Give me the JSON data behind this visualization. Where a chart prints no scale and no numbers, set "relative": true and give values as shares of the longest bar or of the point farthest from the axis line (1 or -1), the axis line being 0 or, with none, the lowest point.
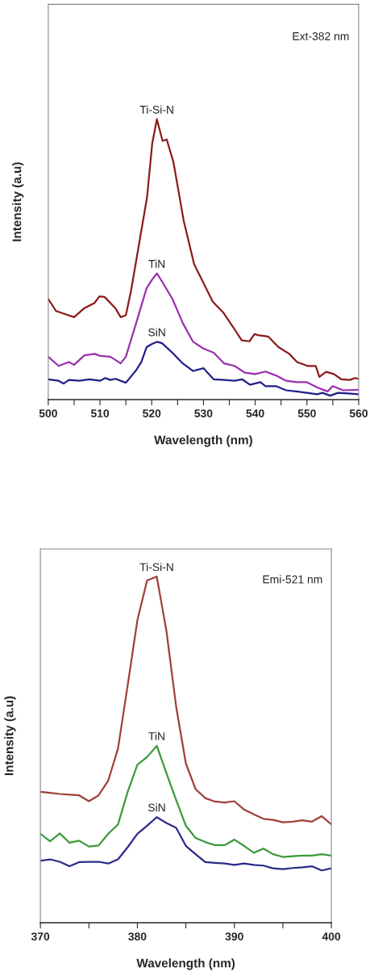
{
  "chart_data": [
    {
      "type": "line",
      "relative": true,
      "xlabel": "Wavelength (nm)",
      "ylabel": "Intensity (a.u)",
      "annotations": [
        "Ext-382 nm"
      ],
      "xlim": [
        500,
        560
      ],
      "xticks": [
        500,
        {
          "value": 505,
          "label": null
        },
        510,
        {
          "value": 515,
          "label": null
        },
        520,
        {
          "value": 525,
          "label": null
        },
        530,
        {
          "value": 535,
          "label": null
        },
        540,
        {
          "value": 545,
          "label": null
        },
        550,
        {
          "value": 555,
          "label": null
        },
        560
      ],
      "grid": false,
      "legend": false,
      "marker": "none",
      "line_style": "solid",
      "series": [
        {
          "name": "Ti-Si-N",
          "color": "#8b1a1a",
          "x": [
            500,
            501.5,
            503.1,
            505,
            506.9,
            508.9,
            509.9,
            510.9,
            513,
            514,
            515,
            516,
            517.6,
            519.1,
            520.1,
            521,
            522.1,
            522.9,
            524.2,
            526.2,
            528.2,
            530,
            531.8,
            533.8,
            535.9,
            537.4,
            538.9,
            539.9,
            540.5,
            542.5,
            544.5,
            546.6,
            548.1,
            550.1,
            551.7,
            552.4,
            553.7,
            555.2,
            556.7,
            558.3,
            559.3,
            560
          ],
          "values": [
            0.359,
            0.316,
            0.306,
            0.294,
            0.325,
            0.344,
            0.368,
            0.366,
            0.325,
            0.294,
            0.301,
            0.388,
            0.56,
            0.722,
            0.914,
            1.0,
            0.923,
            0.928,
            0.847,
            0.636,
            0.483,
            0.416,
            0.349,
            0.311,
            0.254,
            0.211,
            0.208,
            0.234,
            0.23,
            0.225,
            0.187,
            0.163,
            0.134,
            0.12,
            0.12,
            0.081,
            0.099,
            0.091,
            0.072,
            0.07,
            0.077,
            0.074
          ]
        },
        {
          "name": "TiN",
          "color": "#9b2fae",
          "x": [
            500,
            502,
            504,
            505,
            507,
            509,
            510,
            512,
            514,
            515,
            517,
            519,
            520,
            521,
            522,
            524,
            526,
            528,
            530,
            532,
            534,
            536,
            538,
            540,
            542,
            544,
            546,
            548,
            550,
            552,
            554,
            555,
            557,
            560
          ],
          "values": [
            0.153,
            0.12,
            0.134,
            0.124,
            0.158,
            0.163,
            0.156,
            0.153,
            0.129,
            0.153,
            0.273,
            0.397,
            0.426,
            0.45,
            0.421,
            0.359,
            0.273,
            0.206,
            0.182,
            0.167,
            0.129,
            0.12,
            0.096,
            0.091,
            0.1,
            0.086,
            0.067,
            0.062,
            0.062,
            0.043,
            0.029,
            0.048,
            0.033,
            0.035
          ]
        },
        {
          "name": "SiN",
          "color": "#1f1f8a",
          "x": [
            500,
            502,
            503,
            504,
            506,
            508,
            510,
            511,
            512,
            513,
            515,
            517,
            518,
            519,
            520,
            521,
            522,
            524,
            526,
            528,
            530,
            532,
            534,
            536,
            537.5,
            539,
            541,
            542,
            544,
            546,
            548,
            550,
            552,
            553,
            554.5,
            556,
            558,
            560
          ],
          "values": [
            0.072,
            0.067,
            0.057,
            0.07,
            0.067,
            0.072,
            0.067,
            0.077,
            0.07,
            0.074,
            0.06,
            0.105,
            0.134,
            0.187,
            0.198,
            0.206,
            0.201,
            0.167,
            0.129,
            0.102,
            0.112,
            0.072,
            0.07,
            0.067,
            0.072,
            0.053,
            0.062,
            0.048,
            0.048,
            0.033,
            0.029,
            0.024,
            0.019,
            0.024,
            0.014,
            0.024,
            0.022,
            0.019
          ]
        }
      ]
    },
    {
      "type": "line",
      "relative": true,
      "xlabel": "Wavelength (nm)",
      "ylabel": "Intensity (a.u)",
      "annotations": [
        "Emi-521 nm"
      ],
      "xlim": [
        370,
        400
      ],
      "xticks": [
        370,
        {
          "value": 375,
          "label": null
        },
        380,
        {
          "value": 385,
          "label": null
        },
        390,
        {
          "value": 395,
          "label": null
        },
        400
      ],
      "grid": false,
      "legend": false,
      "marker": "none",
      "line_style": "solid",
      "x": [
        370,
        371,
        372,
        373,
        374,
        375,
        376,
        377,
        378,
        379,
        380,
        381,
        382,
        383,
        384,
        385,
        386,
        387,
        388,
        389,
        390,
        391,
        392,
        393,
        394,
        395,
        396,
        397,
        398,
        399,
        400
      ],
      "series": [
        {
          "name": "Ti-Si-N",
          "color": "#a0403a",
          "values": [
            0.378,
            0.375,
            0.372,
            0.37,
            0.368,
            0.351,
            0.368,
            0.411,
            0.503,
            0.686,
            0.874,
            0.989,
            1.0,
            0.842,
            0.624,
            0.46,
            0.386,
            0.36,
            0.35,
            0.347,
            0.351,
            0.327,
            0.313,
            0.3,
            0.297,
            0.29,
            0.292,
            0.296,
            0.292,
            0.308,
            0.284
          ]
        },
        {
          "name": "TiN",
          "color": "#3a9a3a",
          "values": [
            0.257,
            0.235,
            0.258,
            0.231,
            0.237,
            0.22,
            0.223,
            0.257,
            0.284,
            0.378,
            0.456,
            0.479,
            0.511,
            0.432,
            0.354,
            0.28,
            0.245,
            0.233,
            0.224,
            0.224,
            0.24,
            0.222,
            0.202,
            0.214,
            0.198,
            0.19,
            0.192,
            0.194,
            0.194,
            0.198,
            0.194
          ]
        },
        {
          "name": "SiN",
          "color": "#2a2a8a",
          "values": [
            0.179,
            0.183,
            0.176,
            0.163,
            0.175,
            0.176,
            0.176,
            0.171,
            0.183,
            0.218,
            0.257,
            0.28,
            0.305,
            0.288,
            0.274,
            0.222,
            0.198,
            0.175,
            0.173,
            0.171,
            0.167,
            0.171,
            0.167,
            0.165,
            0.157,
            0.155,
            0.158,
            0.16,
            0.163,
            0.151,
            0.157
          ]
        }
      ]
    }
  ]
}
